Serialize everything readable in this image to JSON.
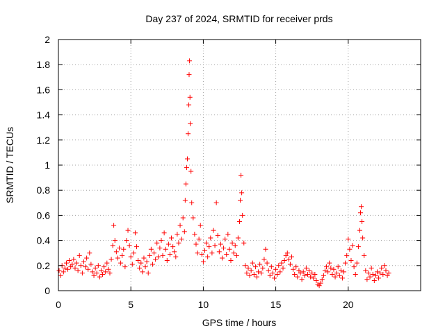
{
  "chart_data": {
    "type": "scatter",
    "title": "Day 237 of 2024, SRMTID for receiver prds",
    "xlabel": "GPS time / hours",
    "ylabel": "SRMTID / TECUs",
    "xlim": [
      0,
      25
    ],
    "ylim": [
      0,
      2
    ],
    "xticks": [
      0,
      5,
      10,
      15,
      20
    ],
    "xtick_labels": [
      "0",
      "5",
      "10",
      "15",
      "20"
    ],
    "yticks": [
      0,
      0.2,
      0.4,
      0.6,
      0.8,
      1,
      1.2,
      1.4,
      1.6,
      1.8,
      2
    ],
    "ytick_labels": [
      "0",
      "0.2",
      "0.4",
      "0.6",
      "0.8",
      "1",
      "1.2",
      "1.4",
      "1.6",
      "1.8",
      "2"
    ],
    "grid": true,
    "marker": "+",
    "marker_color": "#ff0000",
    "series": [
      {
        "name": "SRMTID",
        "points": [
          [
            0.05,
            0.16
          ],
          [
            0.15,
            0.12
          ],
          [
            0.25,
            0.2
          ],
          [
            0.35,
            0.15
          ],
          [
            0.45,
            0.18
          ],
          [
            0.55,
            0.22
          ],
          [
            0.65,
            0.17
          ],
          [
            0.75,
            0.24
          ],
          [
            0.85,
            0.19
          ],
          [
            0.95,
            0.21
          ],
          [
            1.05,
            0.25
          ],
          [
            1.15,
            0.18
          ],
          [
            1.25,
            0.22
          ],
          [
            1.35,
            0.16
          ],
          [
            1.45,
            0.28
          ],
          [
            1.55,
            0.2
          ],
          [
            1.65,
            0.14
          ],
          [
            1.75,
            0.23
          ],
          [
            1.85,
            0.19
          ],
          [
            1.95,
            0.26
          ],
          [
            2.05,
            0.17
          ],
          [
            2.15,
            0.3
          ],
          [
            2.25,
            0.21
          ],
          [
            2.35,
            0.15
          ],
          [
            2.45,
            0.12
          ],
          [
            2.55,
            0.18
          ],
          [
            2.65,
            0.14
          ],
          [
            2.75,
            0.2
          ],
          [
            2.85,
            0.11
          ],
          [
            2.95,
            0.16
          ],
          [
            3.05,
            0.13
          ],
          [
            3.15,
            0.19
          ],
          [
            3.25,
            0.15
          ],
          [
            3.35,
            0.22
          ],
          [
            3.45,
            0.17
          ],
          [
            3.55,
            0.14
          ],
          [
            3.65,
            0.25
          ],
          [
            3.75,
            0.36
          ],
          [
            3.82,
            0.52
          ],
          [
            3.9,
            0.4
          ],
          [
            4.0,
            0.31
          ],
          [
            4.1,
            0.26
          ],
          [
            4.2,
            0.34
          ],
          [
            4.3,
            0.22
          ],
          [
            4.4,
            0.28
          ],
          [
            4.5,
            0.33
          ],
          [
            4.6,
            0.19
          ],
          [
            4.7,
            0.4
          ],
          [
            4.8,
            0.48
          ],
          [
            4.9,
            0.36
          ],
          [
            5.0,
            0.27
          ],
          [
            5.1,
            0.21
          ],
          [
            5.2,
            0.3
          ],
          [
            5.3,
            0.46
          ],
          [
            5.4,
            0.35
          ],
          [
            5.5,
            0.24
          ],
          [
            5.6,
            0.18
          ],
          [
            5.7,
            0.22
          ],
          [
            5.8,
            0.15
          ],
          [
            5.9,
            0.26
          ],
          [
            6.0,
            0.19
          ],
          [
            6.1,
            0.23
          ],
          [
            6.2,
            0.14
          ],
          [
            6.3,
            0.28
          ],
          [
            6.4,
            0.33
          ],
          [
            6.5,
            0.21
          ],
          [
            6.6,
            0.3
          ],
          [
            6.7,
            0.25
          ],
          [
            6.8,
            0.38
          ],
          [
            6.9,
            0.27
          ],
          [
            7.0,
            0.34
          ],
          [
            7.1,
            0.4
          ],
          [
            7.2,
            0.28
          ],
          [
            7.3,
            0.46
          ],
          [
            7.4,
            0.33
          ],
          [
            7.5,
            0.24
          ],
          [
            7.6,
            0.37
          ],
          [
            7.7,
            0.29
          ],
          [
            7.8,
            0.42
          ],
          [
            7.9,
            0.35
          ],
          [
            8.0,
            0.31
          ],
          [
            8.1,
            0.27
          ],
          [
            8.2,
            0.45
          ],
          [
            8.3,
            0.38
          ],
          [
            8.4,
            0.52
          ],
          [
            8.5,
            0.41
          ],
          [
            8.6,
            0.58
          ],
          [
            8.7,
            0.47
          ],
          [
            8.75,
            0.72
          ],
          [
            8.8,
            0.85
          ],
          [
            8.85,
            0.98
          ],
          [
            8.9,
            1.05
          ],
          [
            8.95,
            1.25
          ],
          [
            9.0,
            1.48
          ],
          [
            9.02,
            1.72
          ],
          [
            9.05,
            1.83
          ],
          [
            9.08,
            1.54
          ],
          [
            9.1,
            1.33
          ],
          [
            9.15,
            0.95
          ],
          [
            9.2,
            0.7
          ],
          [
            9.3,
            0.58
          ],
          [
            9.4,
            0.45
          ],
          [
            9.5,
            0.37
          ],
          [
            9.6,
            0.3
          ],
          [
            9.7,
            0.41
          ],
          [
            9.8,
            0.52
          ],
          [
            9.9,
            0.29
          ],
          [
            10.0,
            0.23
          ],
          [
            10.1,
            0.32
          ],
          [
            10.2,
            0.38
          ],
          [
            10.3,
            0.27
          ],
          [
            10.4,
            0.35
          ],
          [
            10.5,
            0.42
          ],
          [
            10.6,
            0.3
          ],
          [
            10.7,
            0.48
          ],
          [
            10.8,
            0.36
          ],
          [
            10.9,
            0.7
          ],
          [
            11.0,
            0.44
          ],
          [
            11.1,
            0.31
          ],
          [
            11.2,
            0.37
          ],
          [
            11.3,
            0.26
          ],
          [
            11.4,
            0.34
          ],
          [
            11.5,
            0.41
          ],
          [
            11.6,
            0.29
          ],
          [
            11.7,
            0.45
          ],
          [
            11.8,
            0.33
          ],
          [
            11.9,
            0.24
          ],
          [
            12.0,
            0.38
          ],
          [
            12.1,
            0.3
          ],
          [
            12.2,
            0.36
          ],
          [
            12.3,
            0.28
          ],
          [
            12.4,
            0.42
          ],
          [
            12.5,
            0.55
          ],
          [
            12.55,
            0.72
          ],
          [
            12.6,
            0.92
          ],
          [
            12.65,
            0.78
          ],
          [
            12.7,
            0.6
          ],
          [
            12.8,
            0.38
          ],
          [
            12.9,
            0.2
          ],
          [
            13.0,
            0.14
          ],
          [
            13.1,
            0.18
          ],
          [
            13.2,
            0.12
          ],
          [
            13.3,
            0.16
          ],
          [
            13.4,
            0.22
          ],
          [
            13.5,
            0.13
          ],
          [
            13.6,
            0.19
          ],
          [
            13.7,
            0.11
          ],
          [
            13.8,
            0.15
          ],
          [
            13.9,
            0.21
          ],
          [
            14.0,
            0.14
          ],
          [
            14.1,
            0.18
          ],
          [
            14.2,
            0.25
          ],
          [
            14.3,
            0.33
          ],
          [
            14.4,
            0.22
          ],
          [
            14.5,
            0.16
          ],
          [
            14.6,
            0.12
          ],
          [
            14.7,
            0.19
          ],
          [
            14.8,
            0.14
          ],
          [
            14.9,
            0.1
          ],
          [
            15.0,
            0.17
          ],
          [
            15.1,
            0.13
          ],
          [
            15.2,
            0.2
          ],
          [
            15.3,
            0.15
          ],
          [
            15.4,
            0.22
          ],
          [
            15.5,
            0.18
          ],
          [
            15.6,
            0.24
          ],
          [
            15.7,
            0.28
          ],
          [
            15.8,
            0.3
          ],
          [
            15.9,
            0.25
          ],
          [
            16.0,
            0.21
          ],
          [
            16.1,
            0.27
          ],
          [
            16.2,
            0.17
          ],
          [
            16.3,
            0.13
          ],
          [
            16.4,
            0.19
          ],
          [
            16.5,
            0.11
          ],
          [
            16.6,
            0.16
          ],
          [
            16.7,
            0.14
          ],
          [
            16.8,
            0.09
          ],
          [
            16.9,
            0.15
          ],
          [
            17.0,
            0.12
          ],
          [
            17.1,
            0.18
          ],
          [
            17.2,
            0.13
          ],
          [
            17.3,
            0.16
          ],
          [
            17.4,
            0.11
          ],
          [
            17.5,
            0.14
          ],
          [
            17.6,
            0.1
          ],
          [
            17.7,
            0.13
          ],
          [
            17.8,
            0.08
          ],
          [
            17.9,
            0.05
          ],
          [
            18.0,
            0.04
          ],
          [
            18.1,
            0.06
          ],
          [
            18.2,
            0.09
          ],
          [
            18.3,
            0.12
          ],
          [
            18.4,
            0.16
          ],
          [
            18.5,
            0.19
          ],
          [
            18.6,
            0.15
          ],
          [
            18.7,
            0.22
          ],
          [
            18.8,
            0.18
          ],
          [
            18.9,
            0.13
          ],
          [
            19.0,
            0.17
          ],
          [
            19.1,
            0.11
          ],
          [
            19.2,
            0.14
          ],
          [
            19.3,
            0.19
          ],
          [
            19.4,
            0.12
          ],
          [
            19.5,
            0.16
          ],
          [
            19.6,
            0.1
          ],
          [
            19.7,
            0.15
          ],
          [
            19.8,
            0.22
          ],
          [
            19.9,
            0.28
          ],
          [
            20.0,
            0.41
          ],
          [
            20.1,
            0.33
          ],
          [
            20.2,
            0.24
          ],
          [
            20.3,
            0.36
          ],
          [
            20.4,
            0.19
          ],
          [
            20.5,
            0.13
          ],
          [
            20.6,
            0.22
          ],
          [
            20.7,
            0.35
          ],
          [
            20.8,
            0.48
          ],
          [
            20.85,
            0.62
          ],
          [
            20.9,
            0.67
          ],
          [
            20.95,
            0.55
          ],
          [
            21.0,
            0.42
          ],
          [
            21.1,
            0.28
          ],
          [
            21.2,
            0.16
          ],
          [
            21.3,
            0.09
          ],
          [
            21.4,
            0.14
          ],
          [
            21.5,
            0.11
          ],
          [
            21.6,
            0.18
          ],
          [
            21.7,
            0.13
          ],
          [
            21.8,
            0.08
          ],
          [
            21.9,
            0.12
          ],
          [
            22.0,
            0.15
          ],
          [
            22.1,
            0.1
          ],
          [
            22.2,
            0.14
          ],
          [
            22.3,
            0.18
          ],
          [
            22.4,
            0.13
          ],
          [
            22.5,
            0.2
          ],
          [
            22.6,
            0.16
          ],
          [
            22.7,
            0.12
          ],
          [
            22.8,
            0.14
          ]
        ]
      }
    ]
  }
}
